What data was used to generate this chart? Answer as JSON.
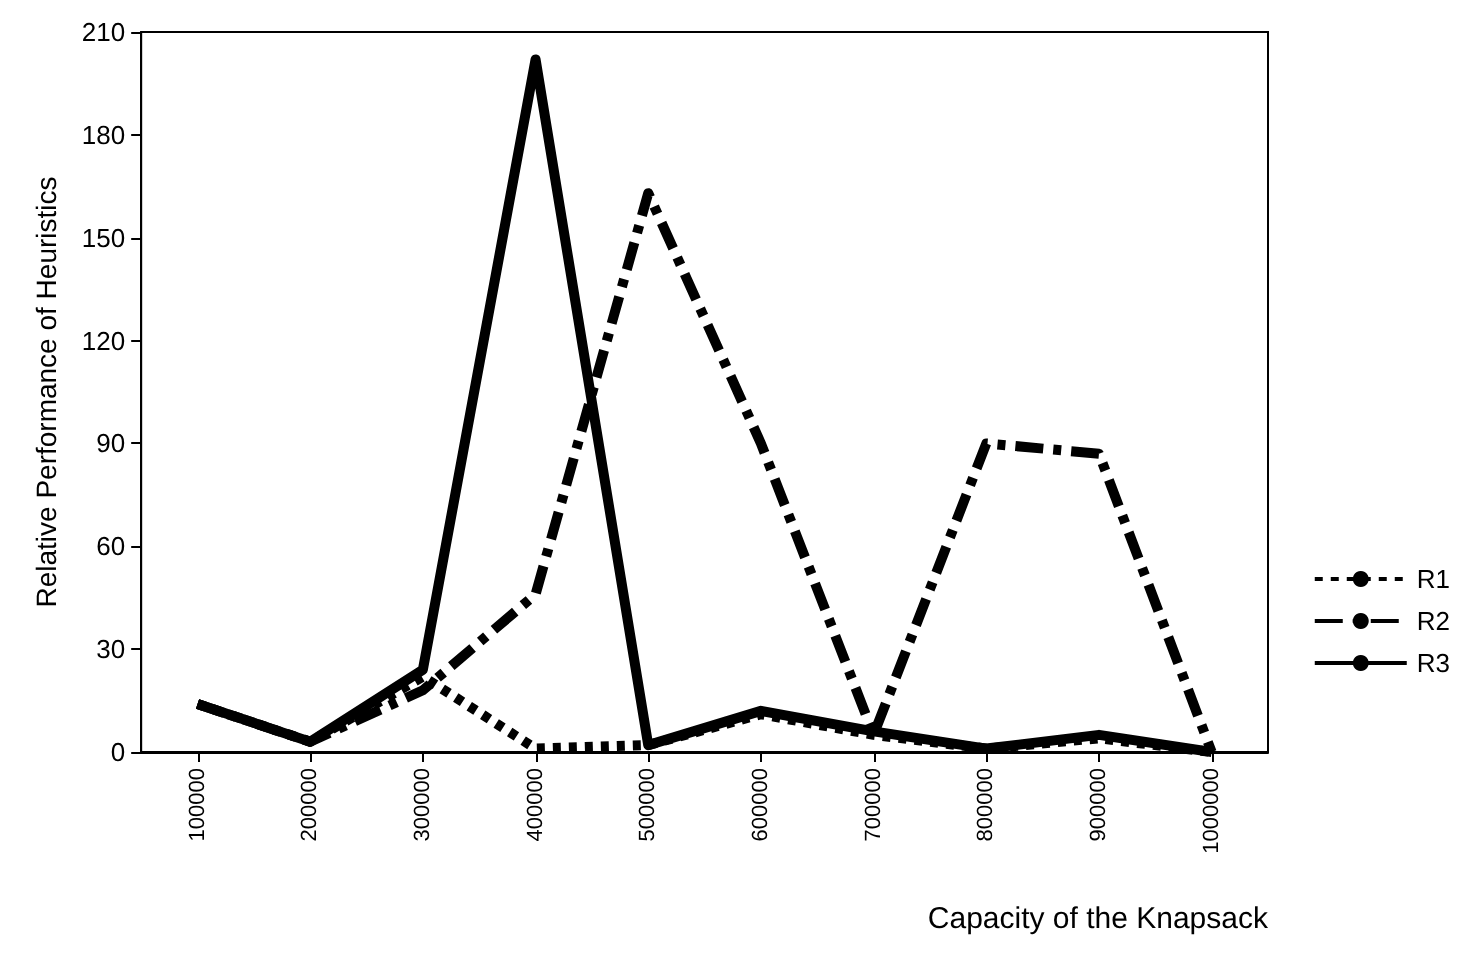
{
  "chart_data": {
    "type": "line",
    "xlabel": "Capacity of the Knapsack",
    "ylabel": "Relative Performance of Heuristics",
    "categories": [
      "100000",
      "200000",
      "300000",
      "400000",
      "500000",
      "600000",
      "700000",
      "800000",
      "900000",
      "1000000"
    ],
    "series": [
      {
        "name": "R1",
        "color": "#000000",
        "line_style": "dotted",
        "values": [
          14,
          3,
          22,
          1,
          2,
          11,
          5,
          1,
          4,
          0
        ]
      },
      {
        "name": "R2",
        "color": "#000000",
        "line_style": "dashed",
        "values": [
          14,
          3,
          18,
          46,
          163,
          90,
          5,
          90,
          87,
          0
        ]
      },
      {
        "name": "R3",
        "color": "#000000",
        "line_style": "solid",
        "values": [
          14,
          3,
          24,
          202,
          2,
          12,
          6,
          1,
          5,
          0
        ]
      }
    ],
    "ylim": [
      0,
      210
    ],
    "yticks": [
      0,
      30,
      60,
      90,
      120,
      150,
      180,
      210
    ],
    "grid": false,
    "legend": "right",
    "marker": "none"
  }
}
